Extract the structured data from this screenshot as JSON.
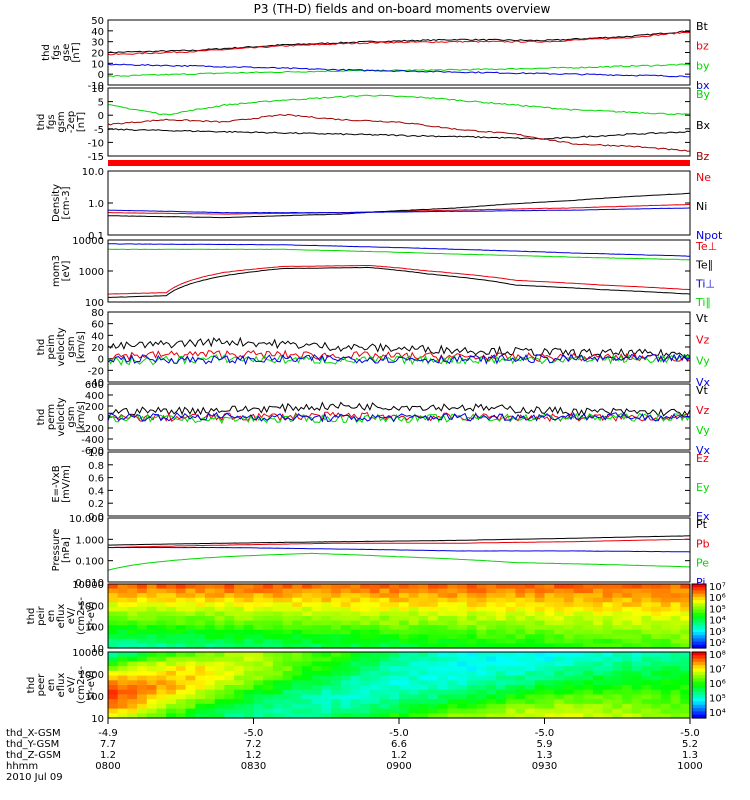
{
  "title": "P3 (TH-D) fields and on-board moments overview",
  "colors": {
    "black": "#000000",
    "red": "#e8000b",
    "green": "#00d800",
    "blue": "#0000e0",
    "darkred": "#a00000"
  },
  "chart_data": [
    {
      "type": "line",
      "ylabel": [
        "thd",
        "fgs",
        "gse",
        "[nT]"
      ],
      "yticks": [
        "50",
        "40",
        "30",
        "20",
        "10",
        "0",
        "-10"
      ],
      "yrange": [
        -10,
        50
      ],
      "series": [
        {
          "name": "Bt",
          "color": "black",
          "points": [
            [
              0,
              20
            ],
            [
              0.15,
              22
            ],
            [
              0.3,
              27
            ],
            [
              0.45,
              30
            ],
            [
              0.6,
              32
            ],
            [
              0.75,
              31
            ],
            [
              0.9,
              35
            ],
            [
              1,
              40
            ]
          ]
        },
        {
          "name": "bz",
          "color": "red",
          "points": [
            [
              0,
              18
            ],
            [
              0.15,
              21
            ],
            [
              0.3,
              26
            ],
            [
              0.45,
              29
            ],
            [
              0.6,
              30
            ],
            [
              0.75,
              30
            ],
            [
              0.9,
              34
            ],
            [
              1,
              39
            ]
          ]
        },
        {
          "name": "by",
          "color": "green",
          "points": [
            [
              0,
              -2
            ],
            [
              0.2,
              1
            ],
            [
              0.4,
              3
            ],
            [
              0.6,
              4
            ],
            [
              0.8,
              6
            ],
            [
              1,
              9
            ]
          ]
        },
        {
          "name": "bx",
          "color": "blue",
          "points": [
            [
              0,
              9
            ],
            [
              0.2,
              7
            ],
            [
              0.4,
              4
            ],
            [
              0.6,
              2
            ],
            [
              0.8,
              0
            ],
            [
              1,
              -2
            ]
          ]
        }
      ]
    },
    {
      "type": "line",
      "ylabel": [
        "thd",
        "fgs",
        "gsm",
        "-2ep",
        "[nT]"
      ],
      "yticks": [
        "10",
        "5",
        "0",
        "-5",
        "-10",
        "-15"
      ],
      "yrange": [
        -18,
        10
      ],
      "series": [
        {
          "name": "By",
          "color": "green",
          "points": [
            [
              0,
              3
            ],
            [
              0.1,
              -1
            ],
            [
              0.2,
              3
            ],
            [
              0.3,
              5
            ],
            [
              0.45,
              7
            ],
            [
              0.55,
              6
            ],
            [
              0.65,
              4
            ],
            [
              0.8,
              1
            ],
            [
              0.9,
              0
            ],
            [
              1,
              -1
            ]
          ]
        },
        {
          "name": "Bx",
          "color": "black",
          "points": [
            [
              0,
              -7
            ],
            [
              0.2,
              -8
            ],
            [
              0.4,
              -9
            ],
            [
              0.6,
              -10
            ],
            [
              0.75,
              -11
            ],
            [
              0.9,
              -9
            ],
            [
              1,
              -8
            ]
          ]
        },
        {
          "name": "Bz",
          "color": "darkred",
          "points": [
            [
              0,
              -5
            ],
            [
              0.1,
              -3
            ],
            [
              0.2,
              -4
            ],
            [
              0.3,
              -1
            ],
            [
              0.4,
              -3
            ],
            [
              0.5,
              -4
            ],
            [
              0.6,
              -7
            ],
            [
              0.7,
              -9
            ],
            [
              0.8,
              -13
            ],
            [
              0.9,
              -14
            ],
            [
              1,
              -16
            ]
          ]
        }
      ]
    },
    {
      "type": "line",
      "log": true,
      "ylabel": [
        "Density",
        "[cm-3]"
      ],
      "yticks": [
        "10.0",
        "1.0",
        "0.1"
      ],
      "yrange": [
        0.1,
        10
      ],
      "series": [
        {
          "name": "Ne",
          "color": "red",
          "points": [
            [
              0,
              0.5
            ],
            [
              0.2,
              0.45
            ],
            [
              0.4,
              0.5
            ],
            [
              0.6,
              0.6
            ],
            [
              0.8,
              0.7
            ],
            [
              1,
              0.9
            ]
          ]
        },
        {
          "name": "Ni",
          "color": "black",
          "points": [
            [
              0,
              0.4
            ],
            [
              0.2,
              0.35
            ],
            [
              0.4,
              0.45
            ],
            [
              0.6,
              0.7
            ],
            [
              0.8,
              1.2
            ],
            [
              1,
              2.0
            ]
          ]
        },
        {
          "name": "Npot",
          "color": "blue",
          "points": [
            [
              0,
              0.6
            ],
            [
              0.2,
              0.5
            ],
            [
              0.4,
              0.5
            ],
            [
              0.6,
              0.55
            ],
            [
              0.8,
              0.6
            ],
            [
              1,
              0.7
            ]
          ]
        }
      ]
    },
    {
      "type": "line",
      "log": true,
      "ylabel": [
        "mom3",
        "[eV]"
      ],
      "yticks": [
        "10000",
        "1000",
        "100"
      ],
      "yrange": [
        100,
        10000
      ],
      "series": [
        {
          "name": "Te⊥",
          "color": "red",
          "points": [
            [
              0,
              180
            ],
            [
              0.1,
              200
            ],
            [
              0.2,
              900
            ],
            [
              0.3,
              1400
            ],
            [
              0.45,
              1500
            ],
            [
              0.55,
              1000
            ],
            [
              0.7,
              500
            ],
            [
              0.85,
              350
            ],
            [
              1,
              250
            ]
          ]
        },
        {
          "name": "Te∥",
          "color": "black",
          "points": [
            [
              0,
              140
            ],
            [
              0.1,
              160
            ],
            [
              0.2,
              700
            ],
            [
              0.3,
              1200
            ],
            [
              0.45,
              1300
            ],
            [
              0.55,
              800
            ],
            [
              0.7,
              350
            ],
            [
              0.85,
              250
            ],
            [
              1,
              180
            ]
          ]
        },
        {
          "name": "Ti⊥",
          "color": "blue",
          "points": [
            [
              0,
              7500
            ],
            [
              0.3,
              7000
            ],
            [
              0.6,
              5000
            ],
            [
              0.8,
              3800
            ],
            [
              1,
              3000
            ]
          ]
        },
        {
          "name": "Ti∥",
          "color": "green",
          "points": [
            [
              0,
              5000
            ],
            [
              0.3,
              5000
            ],
            [
              0.6,
              3500
            ],
            [
              0.8,
              2800
            ],
            [
              1,
              2300
            ]
          ]
        }
      ]
    },
    {
      "type": "line",
      "ylabel": [
        "thd",
        "peim",
        "velocity",
        "gsm",
        "[km/s]"
      ],
      "yticks": [
        "80",
        "60",
        "40",
        "20",
        "0",
        "-20",
        "-40"
      ],
      "yrange": [
        -40,
        80
      ],
      "series": [
        {
          "name": "Vt",
          "color": "black",
          "points": [
            [
              0,
              20
            ],
            [
              0.2,
              30
            ],
            [
              0.4,
              20
            ],
            [
              0.6,
              15
            ],
            [
              0.8,
              10
            ],
            [
              1,
              8
            ]
          ]
        },
        {
          "name": "Vz",
          "color": "red",
          "points": [
            [
              0,
              5
            ],
            [
              0.2,
              8
            ],
            [
              0.4,
              5
            ],
            [
              0.6,
              3
            ],
            [
              0.8,
              2
            ],
            [
              1,
              2
            ]
          ]
        },
        {
          "name": "Vy",
          "color": "green",
          "points": [
            [
              0,
              -5
            ],
            [
              0.2,
              0
            ],
            [
              0.4,
              -3
            ],
            [
              0.6,
              -2
            ],
            [
              0.8,
              -1
            ],
            [
              1,
              0
            ]
          ]
        },
        {
          "name": "Vx",
          "color": "blue",
          "points": [
            [
              0,
              0
            ],
            [
              0.2,
              -2
            ],
            [
              0.4,
              0
            ],
            [
              0.6,
              -1
            ],
            [
              0.8,
              0
            ],
            [
              1,
              0
            ]
          ]
        }
      ]
    },
    {
      "type": "line",
      "ylabel": [
        "thd",
        "perm",
        "velocity",
        "gsm",
        "[km/s]"
      ],
      "yticks": [
        "600",
        "400",
        "200",
        "0",
        "-200",
        "-400",
        "-600"
      ],
      "yrange": [
        -600,
        600
      ],
      "series": [
        {
          "name": "Vt",
          "color": "black",
          "points": [
            [
              0,
              100
            ],
            [
              0.2,
              130
            ],
            [
              0.4,
              200
            ],
            [
              0.6,
              180
            ],
            [
              0.8,
              100
            ],
            [
              1,
              80
            ]
          ]
        },
        {
          "name": "Vz",
          "color": "red",
          "points": [
            [
              0,
              -20
            ],
            [
              0.2,
              0
            ],
            [
              0.4,
              20
            ],
            [
              0.6,
              0
            ],
            [
              0.8,
              -10
            ],
            [
              1,
              0
            ]
          ]
        },
        {
          "name": "Vy",
          "color": "green",
          "points": [
            [
              0,
              -20
            ],
            [
              0.2,
              -40
            ],
            [
              0.4,
              -30
            ],
            [
              0.6,
              -20
            ],
            [
              0.8,
              -10
            ],
            [
              1,
              0
            ]
          ]
        },
        {
          "name": "Vx",
          "color": "blue",
          "points": [
            [
              0,
              0
            ],
            [
              0.2,
              10
            ],
            [
              0.4,
              -20
            ],
            [
              0.6,
              0
            ],
            [
              0.8,
              10
            ],
            [
              1,
              0
            ]
          ]
        }
      ]
    },
    {
      "type": "line",
      "ylabel": [
        "E=-VxB",
        "[mV/m]"
      ],
      "yticks": [
        "1.0",
        "0.8",
        "0.6",
        "0.4",
        "0.2",
        "0.0"
      ],
      "yrange": [
        0,
        1
      ],
      "series": [
        {
          "name": "Ez",
          "color": "red",
          "points": []
        },
        {
          "name": "Ey",
          "color": "green",
          "points": []
        },
        {
          "name": "Ex",
          "color": "blue",
          "points": []
        }
      ]
    },
    {
      "type": "line",
      "log": true,
      "ylabel": [
        "Pressure",
        "[nPa]"
      ],
      "yticks": [
        "10.000",
        "1.000",
        "0.100",
        "0.010"
      ],
      "yrange": [
        0.005,
        10
      ],
      "series": [
        {
          "name": "Pt",
          "color": "black",
          "points": [
            [
              0,
              0.4
            ],
            [
              0.2,
              0.5
            ],
            [
              0.4,
              0.6
            ],
            [
              0.6,
              0.7
            ],
            [
              0.8,
              0.9
            ],
            [
              1,
              1.2
            ]
          ]
        },
        {
          "name": "Pb",
          "color": "red",
          "points": [
            [
              0,
              0.3
            ],
            [
              0.2,
              0.4
            ],
            [
              0.4,
              0.5
            ],
            [
              0.6,
              0.5
            ],
            [
              0.8,
              0.6
            ],
            [
              1,
              0.8
            ]
          ]
        },
        {
          "name": "Pe",
          "color": "green",
          "points": [
            [
              0,
              0.02
            ],
            [
              0.2,
              0.1
            ],
            [
              0.35,
              0.15
            ],
            [
              0.5,
              0.1
            ],
            [
              0.7,
              0.05
            ],
            [
              1,
              0.03
            ]
          ]
        },
        {
          "name": "Pi",
          "color": "blue",
          "points": [
            [
              0,
              0.3
            ],
            [
              0.2,
              0.3
            ],
            [
              0.4,
              0.25
            ],
            [
              0.6,
              0.2
            ],
            [
              0.8,
              0.2
            ],
            [
              1,
              0.18
            ]
          ]
        }
      ]
    },
    {
      "type": "heatmap",
      "ylabel": [
        "thd",
        "peir",
        "en",
        "eflux",
        "eV/",
        "(cm2-s-",
        "sr-eV)"
      ],
      "yticks": [
        "10000",
        "1000",
        "100",
        "10"
      ],
      "colorbar_ticks": [
        "10⁷",
        "10⁶",
        "10⁵",
        "10⁴",
        "10³",
        "10²"
      ]
    },
    {
      "type": "heatmap",
      "ylabel": [
        "thd",
        "peer",
        "en",
        "eflux",
        "eV/",
        "(cm2-s-",
        "sr-eV)"
      ],
      "yticks": [
        "10000",
        "1000",
        "100",
        "10"
      ],
      "colorbar_ticks": [
        "10⁸",
        "10⁷",
        "10⁶",
        "10⁵",
        "10⁴"
      ]
    }
  ],
  "xaxis": {
    "rows": [
      {
        "label": "thd_X-GSM",
        "values": [
          "-4.9",
          "-5.0",
          "-5.0",
          "-5.0",
          "-5.0"
        ]
      },
      {
        "label": "thd_Y-GSM",
        "values": [
          "7.7",
          "7.2",
          "6.6",
          "5.9",
          "5.2"
        ]
      },
      {
        "label": "thd_Z-GSM",
        "values": [
          "1.2",
          "1.2",
          "1.2",
          "1.3",
          "1.3"
        ]
      },
      {
        "label": "hhmm",
        "values": [
          "0800",
          "0830",
          "0900",
          "0930",
          "1000"
        ]
      }
    ],
    "date": "2010 Jul 09"
  }
}
